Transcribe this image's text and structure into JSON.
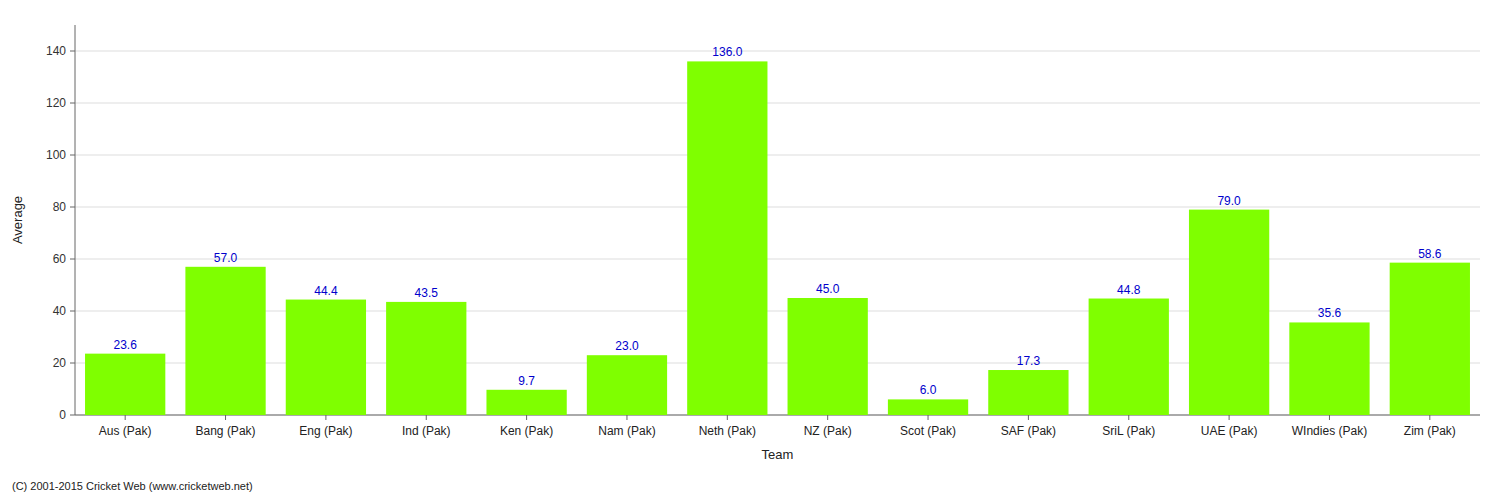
{
  "chart_data": {
    "type": "bar",
    "categories": [
      "Aus (Pak)",
      "Bang (Pak)",
      "Eng (Pak)",
      "Ind (Pak)",
      "Ken (Pak)",
      "Nam (Pak)",
      "Neth (Pak)",
      "NZ (Pak)",
      "Scot (Pak)",
      "SAF (Pak)",
      "SriL (Pak)",
      "UAE (Pak)",
      "WIndies (Pak)",
      "Zim (Pak)"
    ],
    "values": [
      23.6,
      57.0,
      44.4,
      43.5,
      9.7,
      23.0,
      136.0,
      45.0,
      6.0,
      17.3,
      44.8,
      79.0,
      35.6,
      58.6
    ],
    "value_labels": [
      "23.6",
      "57.0",
      "44.4",
      "43.5",
      "9.7",
      "23.0",
      "136.0",
      "45.0",
      "6.0",
      "17.3",
      "44.8",
      "79.0",
      "35.6",
      "58.6"
    ],
    "data_labels": true,
    "color": "#7fff00",
    "xlabel": "Team",
    "ylabel": "Average",
    "ylim": [
      0,
      150
    ],
    "yticks": [
      0,
      20,
      40,
      60,
      80,
      100,
      120,
      140
    ],
    "grid": true,
    "annotations": [
      "(C) 2001-2015 Cricket Web (www.cricketweb.net)"
    ]
  }
}
